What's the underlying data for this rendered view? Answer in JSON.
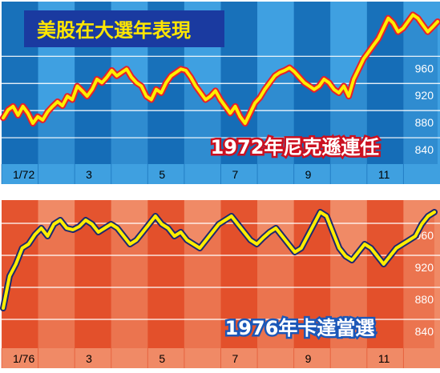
{
  "title": "美股在大選年表現",
  "colors": {
    "top_dark": "#1268b3",
    "top_light": "#3fa0e0",
    "bottom_dark": "#e24a26",
    "bottom_light": "#f08a66",
    "line_top_fill": "#ffee00",
    "line_top_stroke": "#e8202a",
    "line_bottom_fill": "#ffee00",
    "line_bottom_stroke": "#1c2a6e",
    "title_bg": "#1a3aa0",
    "title_text": "#ffe600"
  },
  "chart_data": [
    {
      "type": "line",
      "caption": "1972年尼克遜連任",
      "x_tick_labels": [
        "1/72",
        "3",
        "5",
        "7",
        "9",
        "11"
      ],
      "y_tick_labels": [
        "840",
        "880",
        "920",
        "960"
      ],
      "ylim": [
        820,
        1050
      ],
      "grid": true,
      "series": [
        {
          "values": [
            888,
            900,
            905,
            892,
            905,
            895,
            880,
            890,
            885,
            897,
            905,
            912,
            906,
            920,
            915,
            935,
            928,
            920,
            930,
            945,
            940,
            948,
            958,
            950,
            955,
            960,
            948,
            940,
            935,
            920,
            915,
            930,
            925,
            940,
            950,
            955,
            960,
            958,
            948,
            935,
            925,
            915,
            920,
            928,
            915,
            905,
            895,
            905,
            890,
            880,
            895,
            910,
            918,
            930,
            940,
            950,
            955,
            958,
            962,
            956,
            948,
            940,
            935,
            930,
            935,
            945,
            940,
            930,
            925,
            935,
            920,
            945,
            960,
            975,
            985,
            995,
            1005,
            1020,
            1035,
            1028,
            1015,
            1020,
            1030,
            1040,
            1035,
            1025,
            1015,
            1022,
            1030
          ]
        }
      ]
    },
    {
      "type": "line",
      "caption": "1976年卡達當選",
      "x_tick_labels": [
        "1/76",
        "3",
        "5",
        "7",
        "9",
        "11"
      ],
      "y_tick_labels": [
        "840",
        "880",
        "920",
        "960"
      ],
      "ylim": [
        820,
        1010
      ],
      "grid": true,
      "series": [
        {
          "values": [
            870,
            910,
            925,
            945,
            950,
            962,
            970,
            960,
            975,
            980,
            970,
            968,
            972,
            980,
            975,
            965,
            970,
            975,
            970,
            960,
            950,
            955,
            965,
            975,
            985,
            975,
            970,
            960,
            965,
            955,
            950,
            945,
            955,
            965,
            975,
            980,
            985,
            975,
            965,
            955,
            950,
            958,
            965,
            970,
            960,
            950,
            940,
            945,
            960,
            975,
            990,
            985,
            965,
            945,
            935,
            930,
            940,
            950,
            945,
            935,
            925,
            935,
            945,
            950,
            955,
            960,
            975,
            985,
            990
          ]
        }
      ]
    }
  ]
}
